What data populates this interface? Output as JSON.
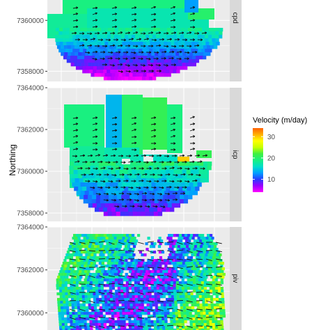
{
  "chart_data": {
    "type": "heatmap",
    "ylabel": "Northing",
    "xlabel": "",
    "legend": {
      "title": "Velocity (m/day)",
      "placement": "right",
      "ticks": [
        30,
        20,
        10
      ],
      "range": [
        4,
        34
      ],
      "colors": [
        "#ff00ff",
        "#9a00ff",
        "#2a3cff",
        "#00a0ff",
        "#00e0c8",
        "#19f080",
        "#40f040",
        "#c8ff00",
        "#ffff00",
        "#ffb000",
        "#ff6000"
      ]
    },
    "panels": [
      {
        "strip": "cpd",
        "ylim": [
          7357600,
          7360800
        ],
        "yticks": [
          {
            "value": 7360000,
            "label": "7360000"
          },
          {
            "value": 7358000,
            "label": "7358000"
          }
        ]
      },
      {
        "strip": "icp",
        "ylim": [
          7357600,
          7364000
        ],
        "yticks": [
          {
            "value": 7364000,
            "label": "7364000"
          },
          {
            "value": 7362000,
            "label": "7362000"
          },
          {
            "value": 7360000,
            "label": "7360000"
          },
          {
            "value": 7358000,
            "label": "7358000"
          }
        ]
      },
      {
        "strip": "piv",
        "ylim": [
          7359200,
          7364000
        ],
        "yticks": [
          {
            "value": 7364000,
            "label": "7364000"
          },
          {
            "value": 7362000,
            "label": "7362000"
          },
          {
            "value": 7360000,
            "label": "7360000"
          }
        ]
      }
    ],
    "grid": true
  }
}
